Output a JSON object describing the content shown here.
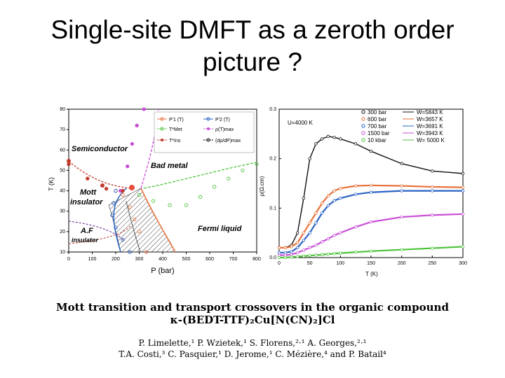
{
  "slide": {
    "title_line1": "Single-site DMFT as a zeroth order",
    "title_line2": "picture  ?"
  },
  "left_plot": {
    "ylabel": "T (K)",
    "xlabel": "P (bar)",
    "x_ticks": [
      "0",
      "100",
      "200",
      "300",
      "400",
      "500",
      "600",
      "700",
      "800"
    ],
    "y_ticks": [
      "10",
      "20",
      "30",
      "40",
      "50",
      "60",
      "70",
      "80"
    ],
    "legend": [
      "P'1 (T)",
      "P'2 (T)",
      "T*Met",
      "ρ(T)max",
      "T*Ins",
      "(dρ/dP)max"
    ],
    "regions": {
      "semiconductor": "Semiconductor",
      "bad_metal": "Bad metal",
      "mott1": "Mott",
      "mott2": "insulator",
      "af1": "A.F",
      "af2": "insulator",
      "fermi": "Fermi liquid"
    }
  },
  "right_plot": {
    "ylabel": "ρ(Ω.cm)",
    "xlabel": "T (K)",
    "annotation": "U=4000 K",
    "x_ticks": [
      "0",
      "50",
      "100",
      "150",
      "200",
      "250",
      "300"
    ],
    "y_ticks": [
      "0.0",
      "0.1",
      "0.2",
      "0.3"
    ],
    "legend_left": [
      "300 bar",
      "600 bar",
      "700 bar",
      "1500 bar",
      "10 kbar"
    ],
    "legend_right": [
      "W=5843 K",
      "W=3657 K",
      "W=3691 K",
      "W=3943 K",
      "W= 5000 K"
    ],
    "colors": {
      "black": "#111111",
      "orange": "#e8723a",
      "blue": "#2a63c6",
      "violet": "#c84fd6",
      "green": "#4cc23a"
    }
  },
  "chart_data": [
    {
      "type": "scatter",
      "title": "",
      "xlabel": "P (bar)",
      "ylabel": "T (K)",
      "xlim": [
        0,
        800
      ],
      "ylim": [
        10,
        80
      ],
      "series": [
        {
          "name": "ρ(T)max",
          "x": [
            220,
            250,
            270,
            290,
            320
          ],
          "y": [
            40,
            52,
            63,
            72,
            80
          ]
        },
        {
          "name": "T*Met",
          "x": [
            300,
            360,
            430,
            500,
            560,
            620,
            680,
            740,
            800
          ],
          "y": [
            38,
            35,
            33,
            33,
            37,
            42,
            46,
            50,
            53
          ]
        },
        {
          "name": "P'1 (T)",
          "x": [
            200,
            230,
            260,
            280,
            300,
            330
          ],
          "y": [
            40,
            38,
            32,
            26,
            20,
            10
          ]
        },
        {
          "name": "P'2 (T)",
          "x": [
            200,
            190,
            185,
            200,
            230,
            260
          ],
          "y": [
            40,
            34,
            28,
            22,
            16,
            10
          ]
        },
        {
          "name": "T*Ins",
          "x": [
            0,
            80,
            160,
            230
          ],
          "y": [
            53,
            46,
            41,
            40
          ]
        }
      ]
    },
    {
      "type": "line",
      "title": "",
      "xlabel": "T (K)",
      "ylabel": "ρ(Ω.cm)",
      "xlim": [
        0,
        300
      ],
      "ylim": [
        0,
        0.3
      ],
      "x": [
        0,
        10,
        20,
        30,
        40,
        50,
        60,
        70,
        80,
        90,
        100,
        125,
        150,
        200,
        250,
        300
      ],
      "series": [
        {
          "name": "300 bar",
          "values": [
            0.02,
            0.02,
            0.025,
            0.05,
            0.12,
            0.2,
            0.23,
            0.24,
            0.245,
            0.243,
            0.24,
            0.23,
            0.215,
            0.19,
            0.175,
            0.17
          ]
        },
        {
          "name": "600 bar",
          "values": [
            0.02,
            0.02,
            0.022,
            0.03,
            0.05,
            0.07,
            0.09,
            0.11,
            0.125,
            0.135,
            0.14,
            0.145,
            0.146,
            0.145,
            0.143,
            0.142
          ]
        },
        {
          "name": "700 bar",
          "values": [
            0.01,
            0.01,
            0.012,
            0.02,
            0.035,
            0.05,
            0.07,
            0.09,
            0.105,
            0.115,
            0.12,
            0.128,
            0.132,
            0.135,
            0.135,
            0.135
          ]
        },
        {
          "name": "1500 bar",
          "values": [
            0.005,
            0.005,
            0.006,
            0.01,
            0.015,
            0.02,
            0.025,
            0.032,
            0.038,
            0.045,
            0.05,
            0.062,
            0.072,
            0.082,
            0.086,
            0.088
          ]
        },
        {
          "name": "10 kbar",
          "values": [
            0.0,
            0.0,
            0.001,
            0.002,
            0.003,
            0.004,
            0.005,
            0.006,
            0.007,
            0.008,
            0.009,
            0.011,
            0.013,
            0.016,
            0.019,
            0.022
          ]
        }
      ],
      "annotations": [
        "U=4000 K"
      ]
    }
  ],
  "paper": {
    "title_line1": "Mott transition and transport crossovers in the organic compound",
    "title_line2": "κ-(BEDT-TTF)₂Cu[N(CN)₂]Cl",
    "authors_line1": "P. Limelette,¹ P. Wzietek,¹ S. Florens,²·¹ A. Georges,²·¹",
    "authors_line2": "T.A. Costi,³ C. Pasquier,¹ D. Jerome,¹ C. Mézière,⁴ and P. Batail⁴"
  }
}
